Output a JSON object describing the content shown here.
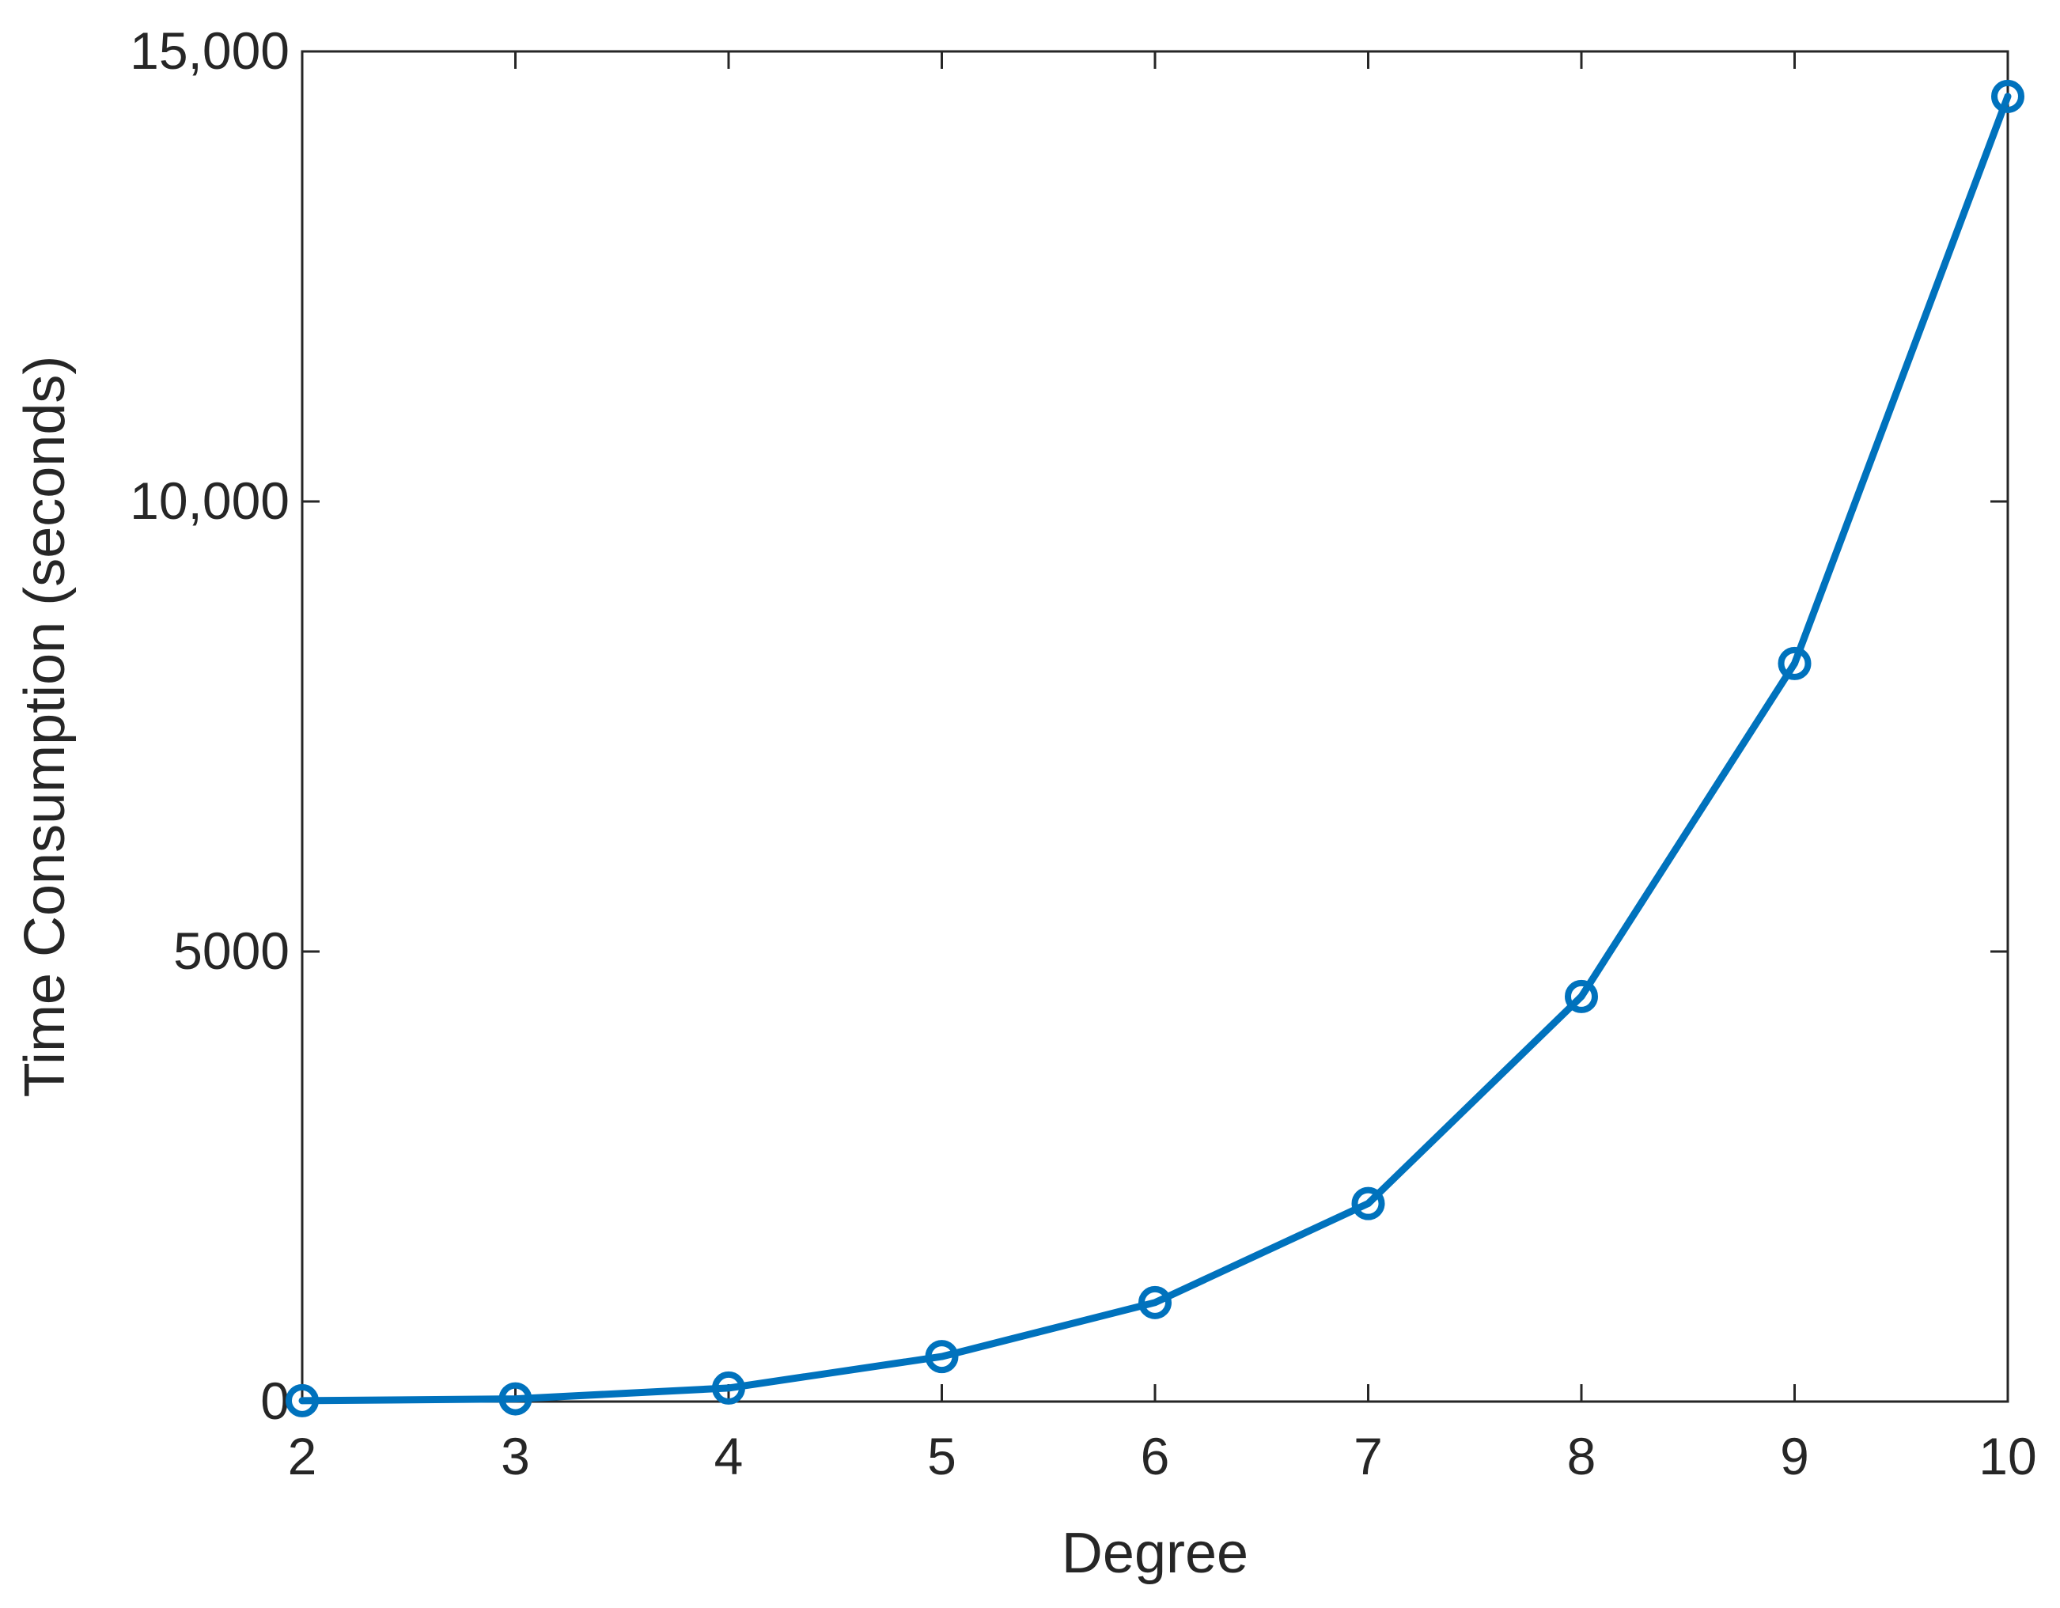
{
  "chart_data": {
    "type": "line",
    "title": "",
    "xlabel": "Degree",
    "ylabel": "Time Consumption (seconds)",
    "xlim": [
      2,
      10
    ],
    "ylim": [
      0,
      15000
    ],
    "x_ticks": [
      2,
      3,
      4,
      5,
      6,
      7,
      8,
      9,
      10
    ],
    "x_tick_labels": [
      "2",
      "3",
      "4",
      "5",
      "6",
      "7",
      "8",
      "9",
      "10"
    ],
    "y_ticks": [
      0,
      5000,
      10000,
      15000
    ],
    "y_tick_labels": [
      "0",
      "5000",
      "10,000",
      "15,000"
    ],
    "grid": false,
    "box": true,
    "series": [
      {
        "x": [
          2,
          3,
          4,
          5,
          6,
          7,
          8,
          9,
          10
        ],
        "values": [
          10,
          30,
          150,
          500,
          1100,
          2200,
          4500,
          8200,
          14500
        ],
        "color": "#0072BD",
        "marker": "circle"
      }
    ]
  }
}
